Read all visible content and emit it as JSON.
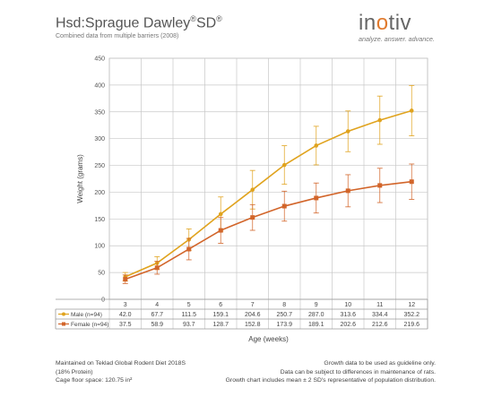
{
  "header": {
    "title": "Hsd:Sprague Dawley",
    "title_reg1": "®",
    "title_sd": "SD",
    "title_reg2": "®",
    "subtitle": "Combined data from multiple barriers (2008)"
  },
  "logo": {
    "word_a": "in",
    "word_dot": "o",
    "word_b": "tiv",
    "tagline": "analyze. answer. advance."
  },
  "chart_data": {
    "type": "line",
    "xlabel": "Age (weeks)",
    "ylabel": "Weight (grams)",
    "ylim": [
      0,
      450
    ],
    "yticks": [
      0,
      50,
      100,
      150,
      200,
      250,
      300,
      350,
      400,
      450
    ],
    "categories": [
      "3",
      "4",
      "5",
      "6",
      "7",
      "8",
      "9",
      "10",
      "11",
      "12"
    ],
    "grid": true,
    "series": [
      {
        "name": "Male (n=94)",
        "color": "#e0a31e",
        "marker": "circle",
        "values": [
          42.0,
          67.7,
          111.5,
          159.1,
          204.6,
          250.7,
          287.0,
          313.6,
          334.4,
          352.2
        ],
        "error": [
          8,
          12,
          20,
          32,
          36,
          36,
          36,
          38,
          45,
          47
        ],
        "labels": [
          "42.0",
          "67.7",
          "111.5",
          "159.1",
          "204.6",
          "250.7",
          "287.0",
          "313.6",
          "334.4",
          "352.2"
        ]
      },
      {
        "name": "Female (n=94)",
        "color": "#d2652a",
        "marker": "square",
        "values": [
          37.5,
          58.9,
          93.7,
          128.7,
          152.8,
          173.9,
          189.1,
          202.6,
          212.6,
          219.6
        ],
        "error": [
          8,
          12,
          20,
          24,
          24,
          28,
          28,
          30,
          32,
          33
        ],
        "labels": [
          "37.5",
          "58.9",
          "93.7",
          "128.7",
          "152.8",
          "173.9",
          "189.1",
          "202.6",
          "212.6",
          "219.6"
        ]
      }
    ]
  },
  "footer": {
    "left": [
      "Maintained on Teklad Global Rodent Diet 2018S",
      "(18% Protein)",
      "Cage floor space: 120.75 in²"
    ],
    "right": [
      "Growth data to be used as guideline only.",
      "Data can be subject to differences in maintenance of rats.",
      "Growth chart includes mean ± 2 SD's representative of population distribution."
    ]
  }
}
